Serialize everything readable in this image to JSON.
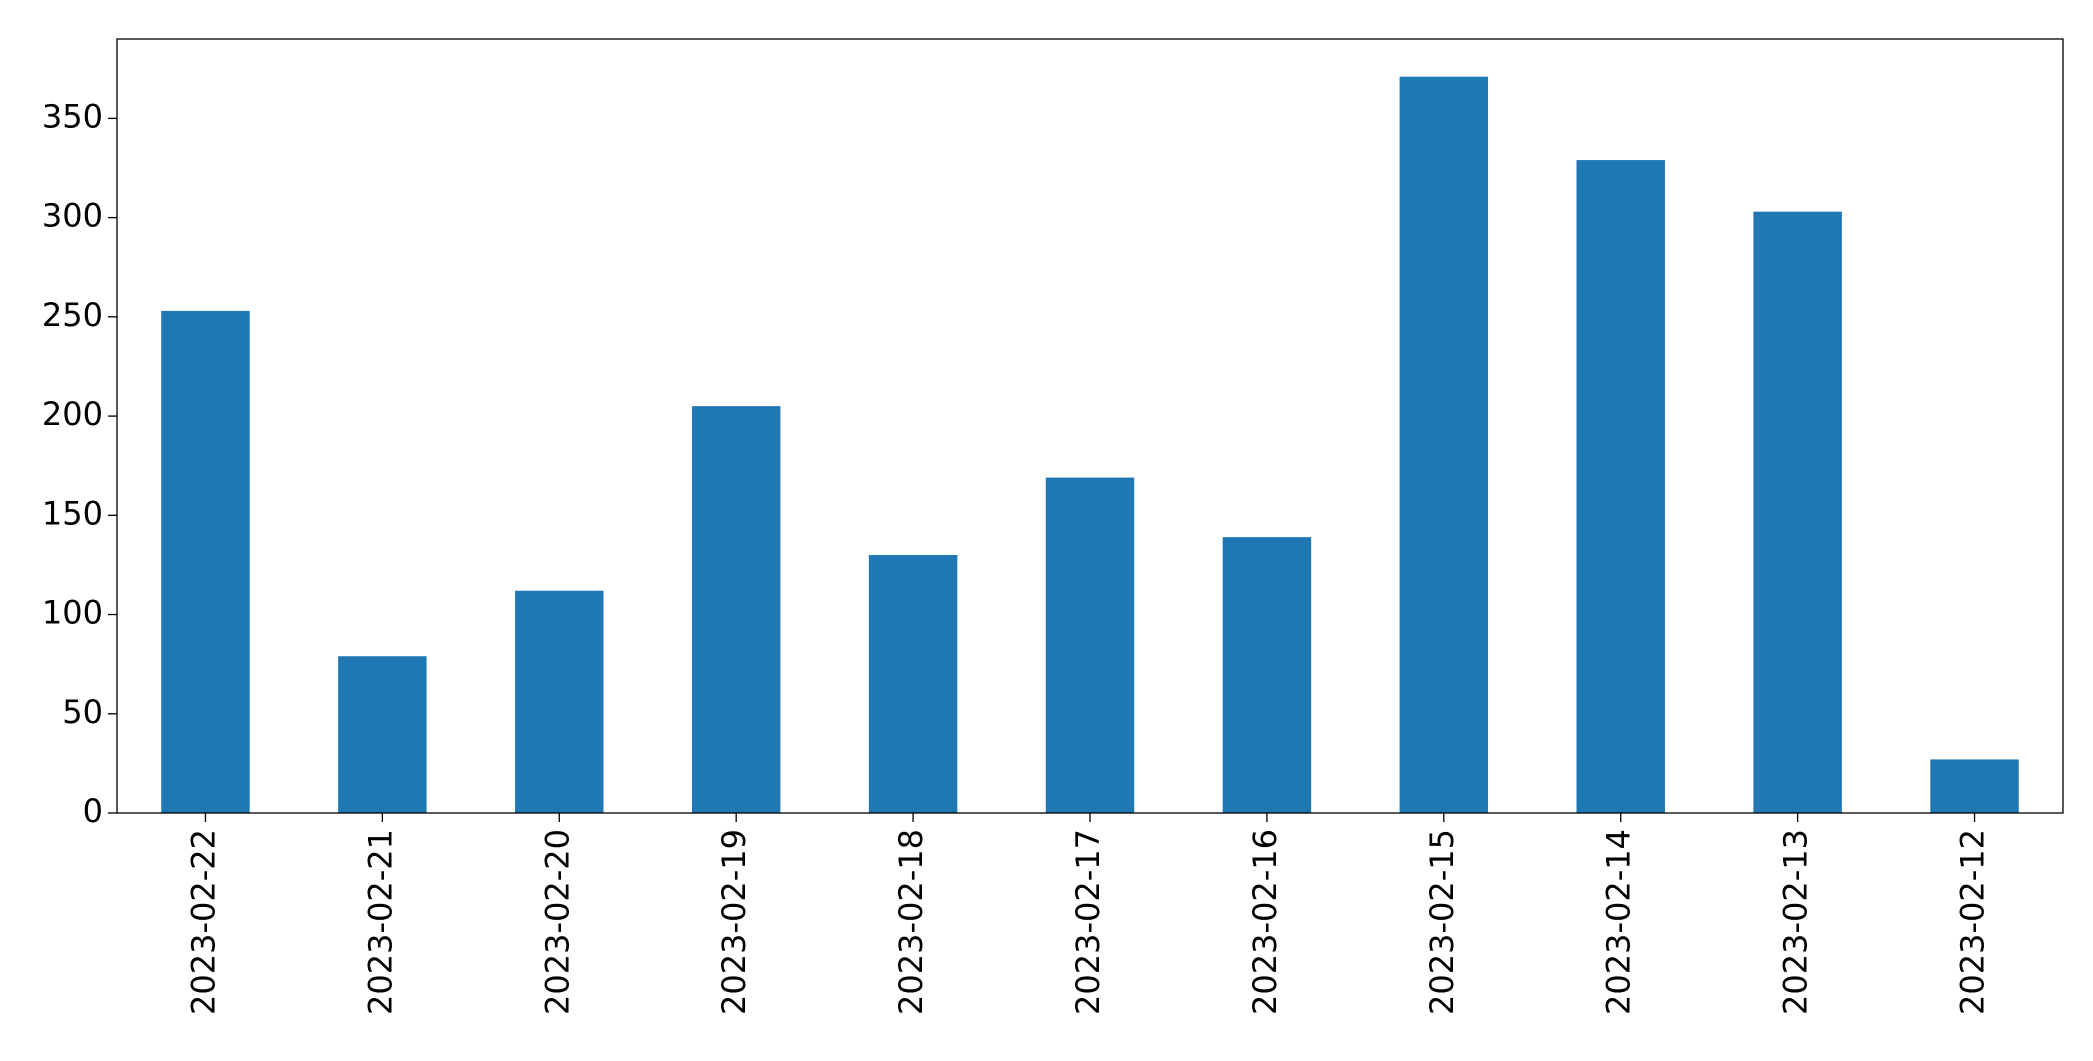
{
  "chart_data": {
    "type": "bar",
    "categories": [
      "2023-02-22",
      "2023-02-21",
      "2023-02-20",
      "2023-02-19",
      "2023-02-18",
      "2023-02-17",
      "2023-02-16",
      "2023-02-15",
      "2023-02-14",
      "2023-02-13",
      "2023-02-12"
    ],
    "values": [
      253,
      79,
      112,
      205,
      130,
      169,
      139,
      371,
      329,
      303,
      27
    ],
    "color": "#1f77b4",
    "ylim": [
      0,
      390
    ],
    "yticks": [
      0,
      50,
      100,
      150,
      200,
      250,
      300,
      350
    ],
    "grid": false
  }
}
